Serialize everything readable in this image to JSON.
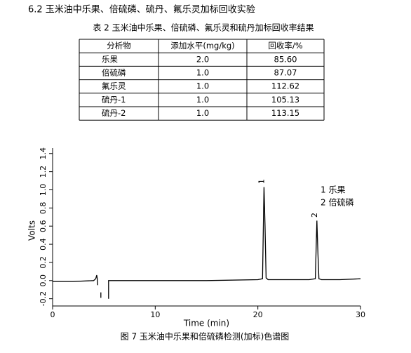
{
  "heading": "6.2 玉米油中乐果、倍硫磷、硫丹、氟乐灵加标回收实验",
  "table": {
    "caption": "表 2 玉米油中乐果、倍硫磷、氟乐灵和硫丹加标回收率结果",
    "header": [
      "分析物",
      "添加水平(mg/kg)",
      "回收率/%"
    ],
    "rows": [
      [
        "乐果",
        "2.0",
        "85.60"
      ],
      [
        "倍硫磷",
        "1.0",
        "87.07"
      ],
      [
        "氟乐灵",
        "1.0",
        "112.62"
      ],
      [
        "硫丹-1",
        "1.0",
        "105.13"
      ],
      [
        "硫丹-2",
        "1.0",
        "113.15"
      ]
    ]
  },
  "figure": {
    "type": "line",
    "caption": "图 7 玉米油中乐果和倍硫磷检测(加标)色谱图",
    "x_label": "Time (min)",
    "y_label": "Volts",
    "xlim": [
      0,
      30
    ],
    "xticks": [
      0,
      10,
      20,
      30
    ],
    "ylim": [
      -0.28,
      1.46
    ],
    "yticks": [
      -0.2,
      {
        "value": 0,
        "label": "0.0"
      },
      0.2,
      0.4,
      0.6,
      0.8,
      {
        "value": 1,
        "label": "1.0"
      },
      1.2,
      1.4
    ],
    "color": "#000000",
    "trace": {
      "x": [
        0,
        2,
        4,
        4.2,
        4.3,
        4.35,
        4.4,
        4.6,
        4.7,
        4.7,
        4.8,
        5.45,
        5.45,
        5.5,
        10,
        15,
        20,
        20.45,
        20.6,
        20.7,
        20.8,
        21,
        25,
        25.6,
        25.75,
        25.85,
        25.95,
        26.2,
        28,
        30
      ],
      "y": [
        -0.01,
        -0.01,
        0.0,
        0.02,
        0.06,
        0.02,
        -0.05,
        null,
        -0.13,
        -0.19,
        null,
        -0.2,
        0.0,
        0.0,
        0.0,
        0.0,
        0.01,
        0.02,
        1.03,
        0.6,
        0.03,
        0.01,
        0.01,
        0.02,
        0.66,
        0.3,
        0.02,
        0.01,
        0.01,
        0.02
      ]
    },
    "peaks": [
      {
        "x": 20.6,
        "y": 1.03,
        "label": "1"
      },
      {
        "x": 25.75,
        "y": 0.66,
        "label": "2"
      }
    ],
    "legend": [
      "1 乐果",
      "2 倍硫磷"
    ]
  }
}
